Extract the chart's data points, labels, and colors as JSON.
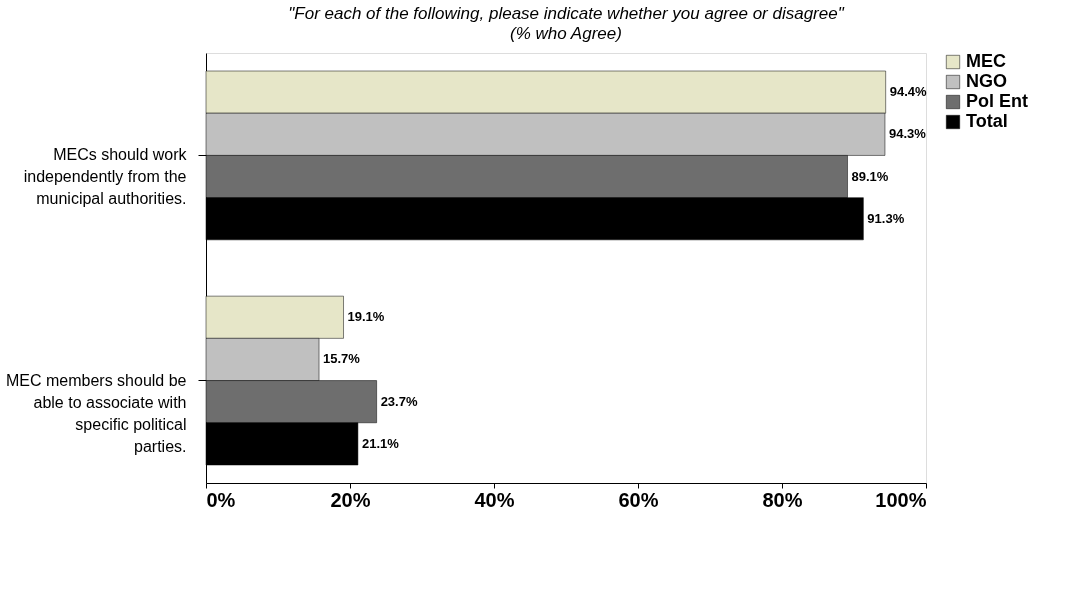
{
  "chart_data": {
    "type": "bar",
    "orientation": "horizontal",
    "title": "\"For each of the following, please indicate whether you agree or disagree\"",
    "subtitle": "(% who Agree)",
    "categories": [
      "MECs should work independently from the municipal authorities.",
      "MEC members should be able to associate with specific political parties."
    ],
    "series": [
      {
        "name": "MEC",
        "color": "#e6e6c8",
        "values": [
          94.4,
          19.1
        ],
        "value_labels": [
          "94.4%",
          "19.1%"
        ]
      },
      {
        "name": "NGO",
        "color": "#c0c0c0",
        "values": [
          94.3,
          15.7
        ],
        "value_labels": [
          "94.3%",
          "15.7%"
        ]
      },
      {
        "name": "Pol Ent",
        "color": "#6e6e6e",
        "values": [
          89.1,
          23.7
        ],
        "value_labels": [
          "89.1%",
          "23.7%"
        ]
      },
      {
        "name": "Total",
        "color": "#000000",
        "values": [
          91.3,
          21.1
        ],
        "value_labels": [
          "91.3%",
          "21.1%"
        ]
      }
    ],
    "xlim": [
      0,
      100
    ],
    "xticks": [
      {
        "value": 0,
        "label": "0%"
      },
      {
        "value": 20,
        "label": "20%"
      },
      {
        "value": 40,
        "label": "40%"
      },
      {
        "value": 60,
        "label": "60%"
      },
      {
        "value": 80,
        "label": "80%"
      },
      {
        "value": 100,
        "label": "100%"
      }
    ],
    "grid": false,
    "legend": "right"
  }
}
